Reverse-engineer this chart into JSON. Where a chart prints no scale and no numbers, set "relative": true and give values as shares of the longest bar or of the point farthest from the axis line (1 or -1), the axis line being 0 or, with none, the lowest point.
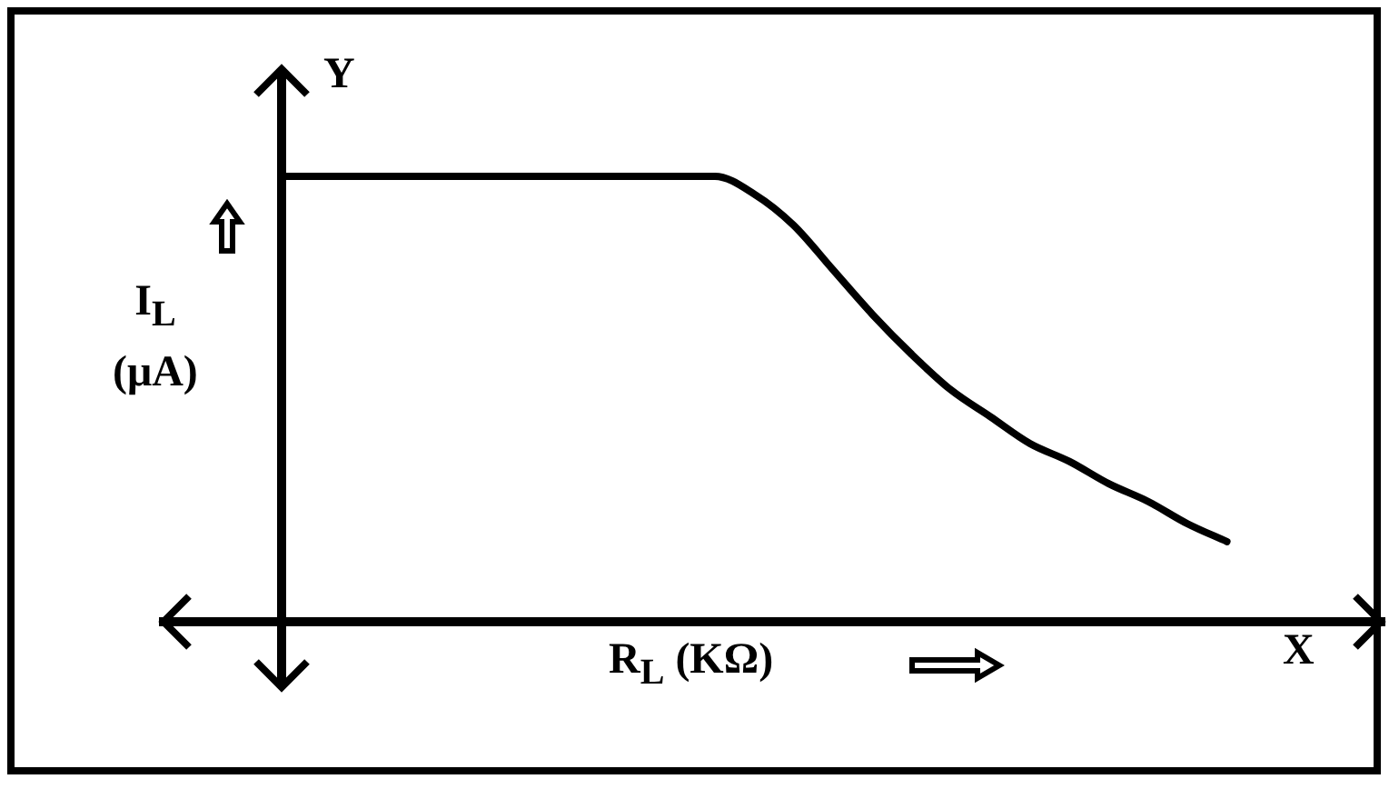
{
  "chart_data": {
    "type": "line",
    "relative": true,
    "xlabel": "R$_{L}$ (KΩ)",
    "ylabel": "I$_{L}$ (μA)",
    "annotations": [
      "Y",
      "X"
    ],
    "categories": [
      null,
      null,
      null,
      null,
      null,
      null,
      null,
      null,
      null,
      null,
      null,
      null,
      null,
      null,
      null,
      null,
      null,
      null,
      null,
      null,
      null,
      null,
      null,
      null,
      null,
      null,
      null,
      null,
      null,
      null,
      null,
      null
    ],
    "series": [
      {
        "color": "#000000",
        "values": [
          null,
          null,
          null,
          1,
          1,
          1,
          1,
          1,
          1,
          1,
          1,
          1,
          1,
          1,
          1,
          0.96,
          0.89,
          0.79,
          0.69,
          0.6,
          0.52,
          0.46,
          0.4,
          0.36,
          0.31,
          0.27,
          0.22,
          0.18,
          null,
          null,
          null,
          null
        ]
      }
    ],
    "legend": false,
    "grid": false,
    "marker": "none",
    "line_style": "solid"
  }
}
